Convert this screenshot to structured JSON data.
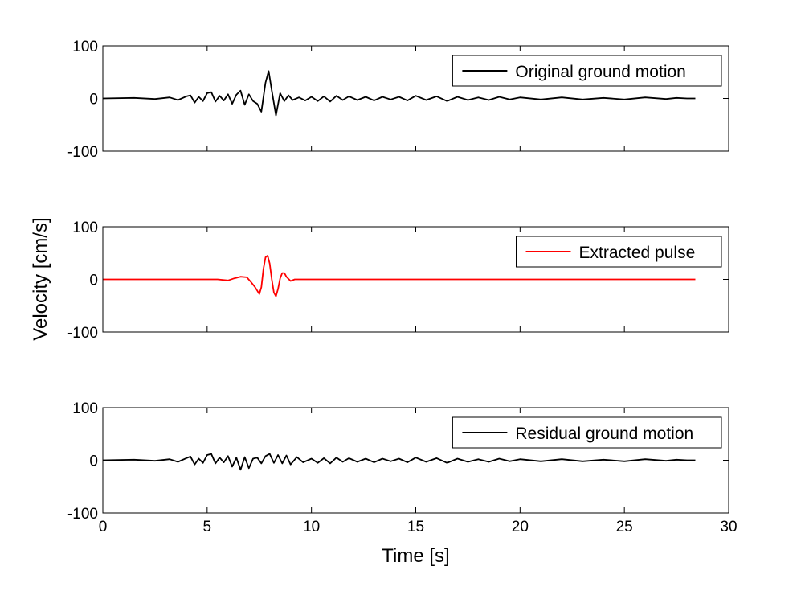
{
  "chart_data": [
    {
      "type": "line",
      "xlim": [
        0,
        30
      ],
      "ylim": [
        -100,
        100
      ],
      "xticks": [
        0,
        5,
        10,
        15,
        20,
        25,
        30
      ],
      "yticks": [
        100,
        0,
        -100
      ],
      "show_xtick_labels": false,
      "legend_position": "top-right",
      "series": [
        {
          "name": "Original ground motion",
          "color": "#000000",
          "x": [
            0,
            1.5,
            2.5,
            3.2,
            3.6,
            4.0,
            4.2,
            4.4,
            4.6,
            4.8,
            5.0,
            5.2,
            5.4,
            5.6,
            5.8,
            6.0,
            6.2,
            6.4,
            6.6,
            6.8,
            7.0,
            7.2,
            7.4,
            7.6,
            7.8,
            7.95,
            8.1,
            8.3,
            8.5,
            8.7,
            8.9,
            9.1,
            9.4,
            9.7,
            10.0,
            10.3,
            10.6,
            10.9,
            11.2,
            11.5,
            11.8,
            12.2,
            12.6,
            13.0,
            13.4,
            13.8,
            14.2,
            14.6,
            15.0,
            15.5,
            16.0,
            16.5,
            17.0,
            17.5,
            18.0,
            18.5,
            19.0,
            19.5,
            20.0,
            21.0,
            22.0,
            23.0,
            24.0,
            25.0,
            26.0,
            27.0,
            27.5,
            28.0,
            28.4
          ],
          "y": [
            0,
            1,
            -1,
            2,
            -3,
            4,
            6,
            -8,
            3,
            -5,
            10,
            12,
            -6,
            5,
            -4,
            8,
            -10,
            7,
            15,
            -12,
            8,
            -5,
            -10,
            -25,
            30,
            52,
            15,
            -32,
            10,
            -5,
            6,
            -3,
            2,
            -4,
            3,
            -5,
            4,
            -6,
            5,
            -3,
            4,
            -3,
            3,
            -4,
            3,
            -2,
            3,
            -4,
            5,
            -3,
            4,
            -5,
            3,
            -3,
            2,
            -3,
            3,
            -2,
            2,
            -2,
            2,
            -2,
            1,
            -2,
            2,
            -1,
            1,
            0,
            0
          ]
        }
      ]
    },
    {
      "type": "line",
      "xlim": [
        0,
        30
      ],
      "ylim": [
        -100,
        100
      ],
      "xticks": [
        0,
        5,
        10,
        15,
        20,
        25,
        30
      ],
      "yticks": [
        100,
        0,
        -100
      ],
      "show_xtick_labels": false,
      "legend_position": "top-right",
      "series": [
        {
          "name": "Extracted pulse",
          "color": "#ff0000",
          "x": [
            0,
            5.5,
            6.0,
            6.3,
            6.6,
            6.9,
            7.1,
            7.3,
            7.5,
            7.6,
            7.7,
            7.8,
            7.9,
            8.0,
            8.1,
            8.2,
            8.3,
            8.4,
            8.5,
            8.6,
            8.7,
            8.8,
            9.0,
            9.2,
            9.5,
            10.0,
            10.5,
            28.4
          ],
          "y": [
            0,
            0,
            -2,
            2,
            5,
            4,
            -5,
            -15,
            -28,
            -15,
            20,
            42,
            45,
            30,
            0,
            -25,
            -32,
            -18,
            2,
            12,
            12,
            5,
            -3,
            0,
            0,
            0,
            0,
            0
          ]
        }
      ]
    },
    {
      "type": "line",
      "xlim": [
        0,
        30
      ],
      "ylim": [
        -100,
        100
      ],
      "xticks": [
        0,
        5,
        10,
        15,
        20,
        25,
        30
      ],
      "yticks": [
        100,
        0,
        -100
      ],
      "show_xtick_labels": true,
      "xlabel": "Time [s]",
      "legend_position": "top-right",
      "series": [
        {
          "name": "Residual ground motion",
          "color": "#000000",
          "x": [
            0,
            1.5,
            2.5,
            3.2,
            3.6,
            4.0,
            4.2,
            4.4,
            4.6,
            4.8,
            5.0,
            5.2,
            5.4,
            5.6,
            5.8,
            6.0,
            6.2,
            6.4,
            6.6,
            6.8,
            7.0,
            7.2,
            7.4,
            7.6,
            7.8,
            8.0,
            8.2,
            8.4,
            8.6,
            8.8,
            9.0,
            9.3,
            9.6,
            10.0,
            10.3,
            10.6,
            10.9,
            11.2,
            11.5,
            11.8,
            12.2,
            12.6,
            13.0,
            13.4,
            13.8,
            14.2,
            14.6,
            15.0,
            15.5,
            16.0,
            16.5,
            17.0,
            17.5,
            18.0,
            18.5,
            19.0,
            19.5,
            20.0,
            21.0,
            22.0,
            23.0,
            24.0,
            25.0,
            26.0,
            27.0,
            27.5,
            28.0,
            28.4
          ],
          "y": [
            0,
            1,
            -1,
            2,
            -3,
            4,
            7,
            -8,
            3,
            -5,
            10,
            12,
            -6,
            5,
            -4,
            8,
            -12,
            5,
            -18,
            6,
            -15,
            3,
            5,
            -6,
            8,
            12,
            -5,
            10,
            -6,
            9,
            -8,
            6,
            -4,
            3,
            -5,
            4,
            -6,
            5,
            -3,
            4,
            -3,
            3,
            -4,
            3,
            -2,
            3,
            -4,
            5,
            -3,
            4,
            -5,
            3,
            -3,
            2,
            -3,
            3,
            -2,
            2,
            -2,
            2,
            -2,
            1,
            -2,
            2,
            -1,
            1,
            0,
            0
          ]
        }
      ]
    }
  ],
  "shared_ylabel": "Velocity [cm/s]"
}
